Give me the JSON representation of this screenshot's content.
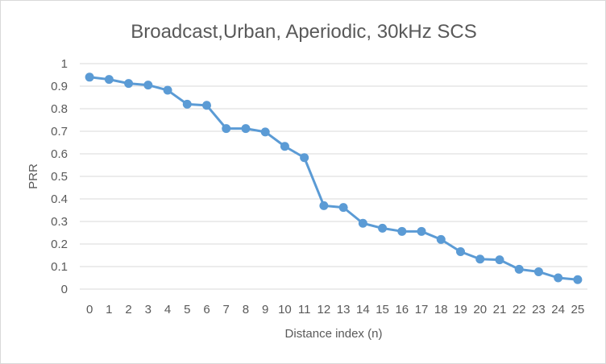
{
  "chart_data": {
    "type": "line",
    "title": "Broadcast,Urban, Aperiodic, 30kHz SCS",
    "xlabel": "Distance index (n)",
    "ylabel": "PRR",
    "x": [
      0,
      1,
      2,
      3,
      4,
      5,
      6,
      7,
      8,
      9,
      10,
      11,
      12,
      13,
      14,
      15,
      16,
      17,
      18,
      19,
      20,
      21,
      22,
      23,
      24,
      25
    ],
    "series": [
      {
        "name": "",
        "values": [
          0.94,
          0.93,
          0.912,
          0.905,
          0.882,
          0.82,
          0.815,
          0.712,
          0.712,
          0.697,
          0.633,
          0.583,
          0.37,
          0.362,
          0.292,
          0.27,
          0.256,
          0.256,
          0.22,
          0.166,
          0.133,
          0.13,
          0.088,
          0.077,
          0.05,
          0.042
        ]
      }
    ],
    "ylim": [
      0,
      1
    ],
    "yticks": [
      "0",
      "0.1",
      "0.2",
      "0.3",
      "0.4",
      "0.5",
      "0.6",
      "0.7",
      "0.8",
      "0.9",
      "1"
    ],
    "xticks": [
      "0",
      "1",
      "2",
      "3",
      "4",
      "5",
      "6",
      "7",
      "8",
      "9",
      "10",
      "11",
      "12",
      "13",
      "14",
      "15",
      "16",
      "17",
      "18",
      "19",
      "20",
      "21",
      "22",
      "23",
      "24",
      "25"
    ],
    "grid": true,
    "legend": "none",
    "colors": {
      "series": "#5b9bd5",
      "grid": "#d9d9d9",
      "text": "#595959"
    }
  }
}
